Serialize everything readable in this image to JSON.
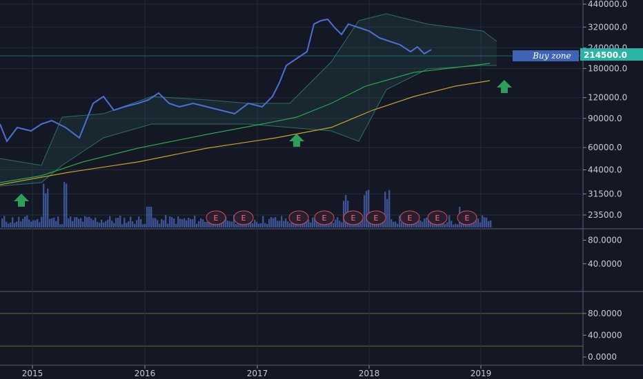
{
  "colors": {
    "background": "#141824",
    "grid": "#262b3a",
    "axis_text": "#c8ccd6",
    "comparison_line": "#4e6fd4",
    "candle_up": "#26a69a",
    "candle_down": "#ef5350",
    "ma_fast": "#2ba84a",
    "ma_slow": "#c9a227",
    "bollinger": "#2e6f6a",
    "volume": "#4a67b8",
    "indicator1": "#6aa83a",
    "indicator2": "#e8a317",
    "arrow": "#2e9e5a",
    "buy_zone_label": "#3f63b5",
    "price_tag": "#2bb3a3",
    "earnings_marker": "#d94b5e"
  },
  "price_tag": "214500.0",
  "buy_zone_label": "Buy zone",
  "earnings_markers": [
    "E",
    "E",
    "E",
    "E",
    "E",
    "E",
    "E",
    "E",
    "E"
  ],
  "chart_data": [
    {
      "type": "candlestick",
      "price_axis_scale": "log",
      "y_ticks": [
        "440000.0",
        "320000.0",
        "240000.0",
        "180000.0",
        "120000.0",
        "90000.0",
        "60000.0",
        "44000.0",
        "31500.0",
        "23500.0"
      ],
      "x_ticks": [
        "2015",
        "2016",
        "2017",
        "2018",
        "2019"
      ],
      "last_price": 214500,
      "close_series": [
        {
          "x": "2014-10",
          "y": 40000
        },
        {
          "x": "2014-12",
          "y": 36000
        },
        {
          "x": "2015-02",
          "y": 45000
        },
        {
          "x": "2015-03",
          "y": 68000
        },
        {
          "x": "2015-05",
          "y": 82000
        },
        {
          "x": "2015-07",
          "y": 78000
        },
        {
          "x": "2015-09",
          "y": 72000
        },
        {
          "x": "2015-11",
          "y": 80000
        },
        {
          "x": "2016-01",
          "y": 95000
        },
        {
          "x": "2016-03",
          "y": 120000
        },
        {
          "x": "2016-05",
          "y": 102000
        },
        {
          "x": "2016-07",
          "y": 105000
        },
        {
          "x": "2016-09",
          "y": 102000
        },
        {
          "x": "2016-11",
          "y": 100000
        },
        {
          "x": "2017-01",
          "y": 95000
        },
        {
          "x": "2017-03",
          "y": 88000
        },
        {
          "x": "2017-05",
          "y": 95000
        },
        {
          "x": "2017-07",
          "y": 115000
        },
        {
          "x": "2017-09",
          "y": 185000
        },
        {
          "x": "2017-11",
          "y": 280000
        },
        {
          "x": "2018-01",
          "y": 345000
        },
        {
          "x": "2018-02",
          "y": 370000
        },
        {
          "x": "2018-04",
          "y": 280000
        },
        {
          "x": "2018-06",
          "y": 270000
        },
        {
          "x": "2018-08",
          "y": 270000
        },
        {
          "x": "2018-10",
          "y": 250000
        },
        {
          "x": "2018-12",
          "y": 210000
        },
        {
          "x": "2019-01",
          "y": 214500
        }
      ],
      "volume_peaks": [
        {
          "x": "2015-03",
          "v": 6
        },
        {
          "x": "2015-05",
          "v": 4
        },
        {
          "x": "2016-02",
          "v": 3
        },
        {
          "x": "2017-11",
          "v": 4
        },
        {
          "x": "2018-01",
          "v": 5
        },
        {
          "x": "2018-03",
          "v": 4
        },
        {
          "x": "2018-10",
          "v": 3
        }
      ]
    },
    {
      "type": "line",
      "y_ticks": [
        "80.0000",
        "40.0000"
      ],
      "points": [
        {
          "x": "2014-10",
          "y": 25
        },
        {
          "x": "2015-01",
          "y": 22
        },
        {
          "x": "2015-03",
          "y": 70
        },
        {
          "x": "2015-05",
          "y": 82
        },
        {
          "x": "2015-08",
          "y": 65
        },
        {
          "x": "2015-10",
          "y": 28
        },
        {
          "x": "2016-01",
          "y": 70
        },
        {
          "x": "2016-03",
          "y": 78
        },
        {
          "x": "2016-05",
          "y": 60
        },
        {
          "x": "2016-07",
          "y": 30
        },
        {
          "x": "2016-09",
          "y": 62
        },
        {
          "x": "2016-11",
          "y": 52
        },
        {
          "x": "2017-01",
          "y": 30
        },
        {
          "x": "2017-03",
          "y": 25
        },
        {
          "x": "2017-05",
          "y": 18
        },
        {
          "x": "2017-08",
          "y": 45
        },
        {
          "x": "2017-10",
          "y": 75
        },
        {
          "x": "2017-12",
          "y": 83
        },
        {
          "x": "2018-02",
          "y": 85
        },
        {
          "x": "2018-05",
          "y": 70
        },
        {
          "x": "2018-07",
          "y": 40
        },
        {
          "x": "2018-09",
          "y": 45
        },
        {
          "x": "2018-11",
          "y": 58
        },
        {
          "x": "2019-01",
          "y": 25
        }
      ]
    },
    {
      "type": "line",
      "y_ticks": [
        "80.0000",
        "40.0000",
        "0.0000"
      ],
      "reference_lines": [
        80,
        20
      ],
      "points": [
        {
          "x": "2014-10",
          "y": 15
        },
        {
          "x": "2014-12",
          "y": 30
        },
        {
          "x": "2015-02",
          "y": 88
        },
        {
          "x": "2015-04",
          "y": 55
        },
        {
          "x": "2015-05",
          "y": 80
        },
        {
          "x": "2015-07",
          "y": 15
        },
        {
          "x": "2015-08",
          "y": 60
        },
        {
          "x": "2015-10",
          "y": 25
        },
        {
          "x": "2015-12",
          "y": 70
        },
        {
          "x": "2016-01",
          "y": 85
        },
        {
          "x": "2016-02",
          "y": 10
        },
        {
          "x": "2016-04",
          "y": 75
        },
        {
          "x": "2016-05",
          "y": 5
        },
        {
          "x": "2016-07",
          "y": 60
        },
        {
          "x": "2016-09",
          "y": 20
        },
        {
          "x": "2016-11",
          "y": 72
        },
        {
          "x": "2017-01",
          "y": 15
        },
        {
          "x": "2017-02",
          "y": 60
        },
        {
          "x": "2017-04",
          "y": 10
        },
        {
          "x": "2017-06",
          "y": 85
        },
        {
          "x": "2017-08",
          "y": 30
        },
        {
          "x": "2017-10",
          "y": 80
        },
        {
          "x": "2017-12",
          "y": 22
        },
        {
          "x": "2018-01",
          "y": 90
        },
        {
          "x": "2018-03",
          "y": 35
        },
        {
          "x": "2018-05",
          "y": 55
        },
        {
          "x": "2018-07",
          "y": 20
        },
        {
          "x": "2018-08",
          "y": 80
        },
        {
          "x": "2018-09",
          "y": 30
        },
        {
          "x": "2018-10",
          "y": 85
        },
        {
          "x": "2018-12",
          "y": 20
        },
        {
          "x": "2019-01",
          "y": 35
        }
      ]
    }
  ]
}
